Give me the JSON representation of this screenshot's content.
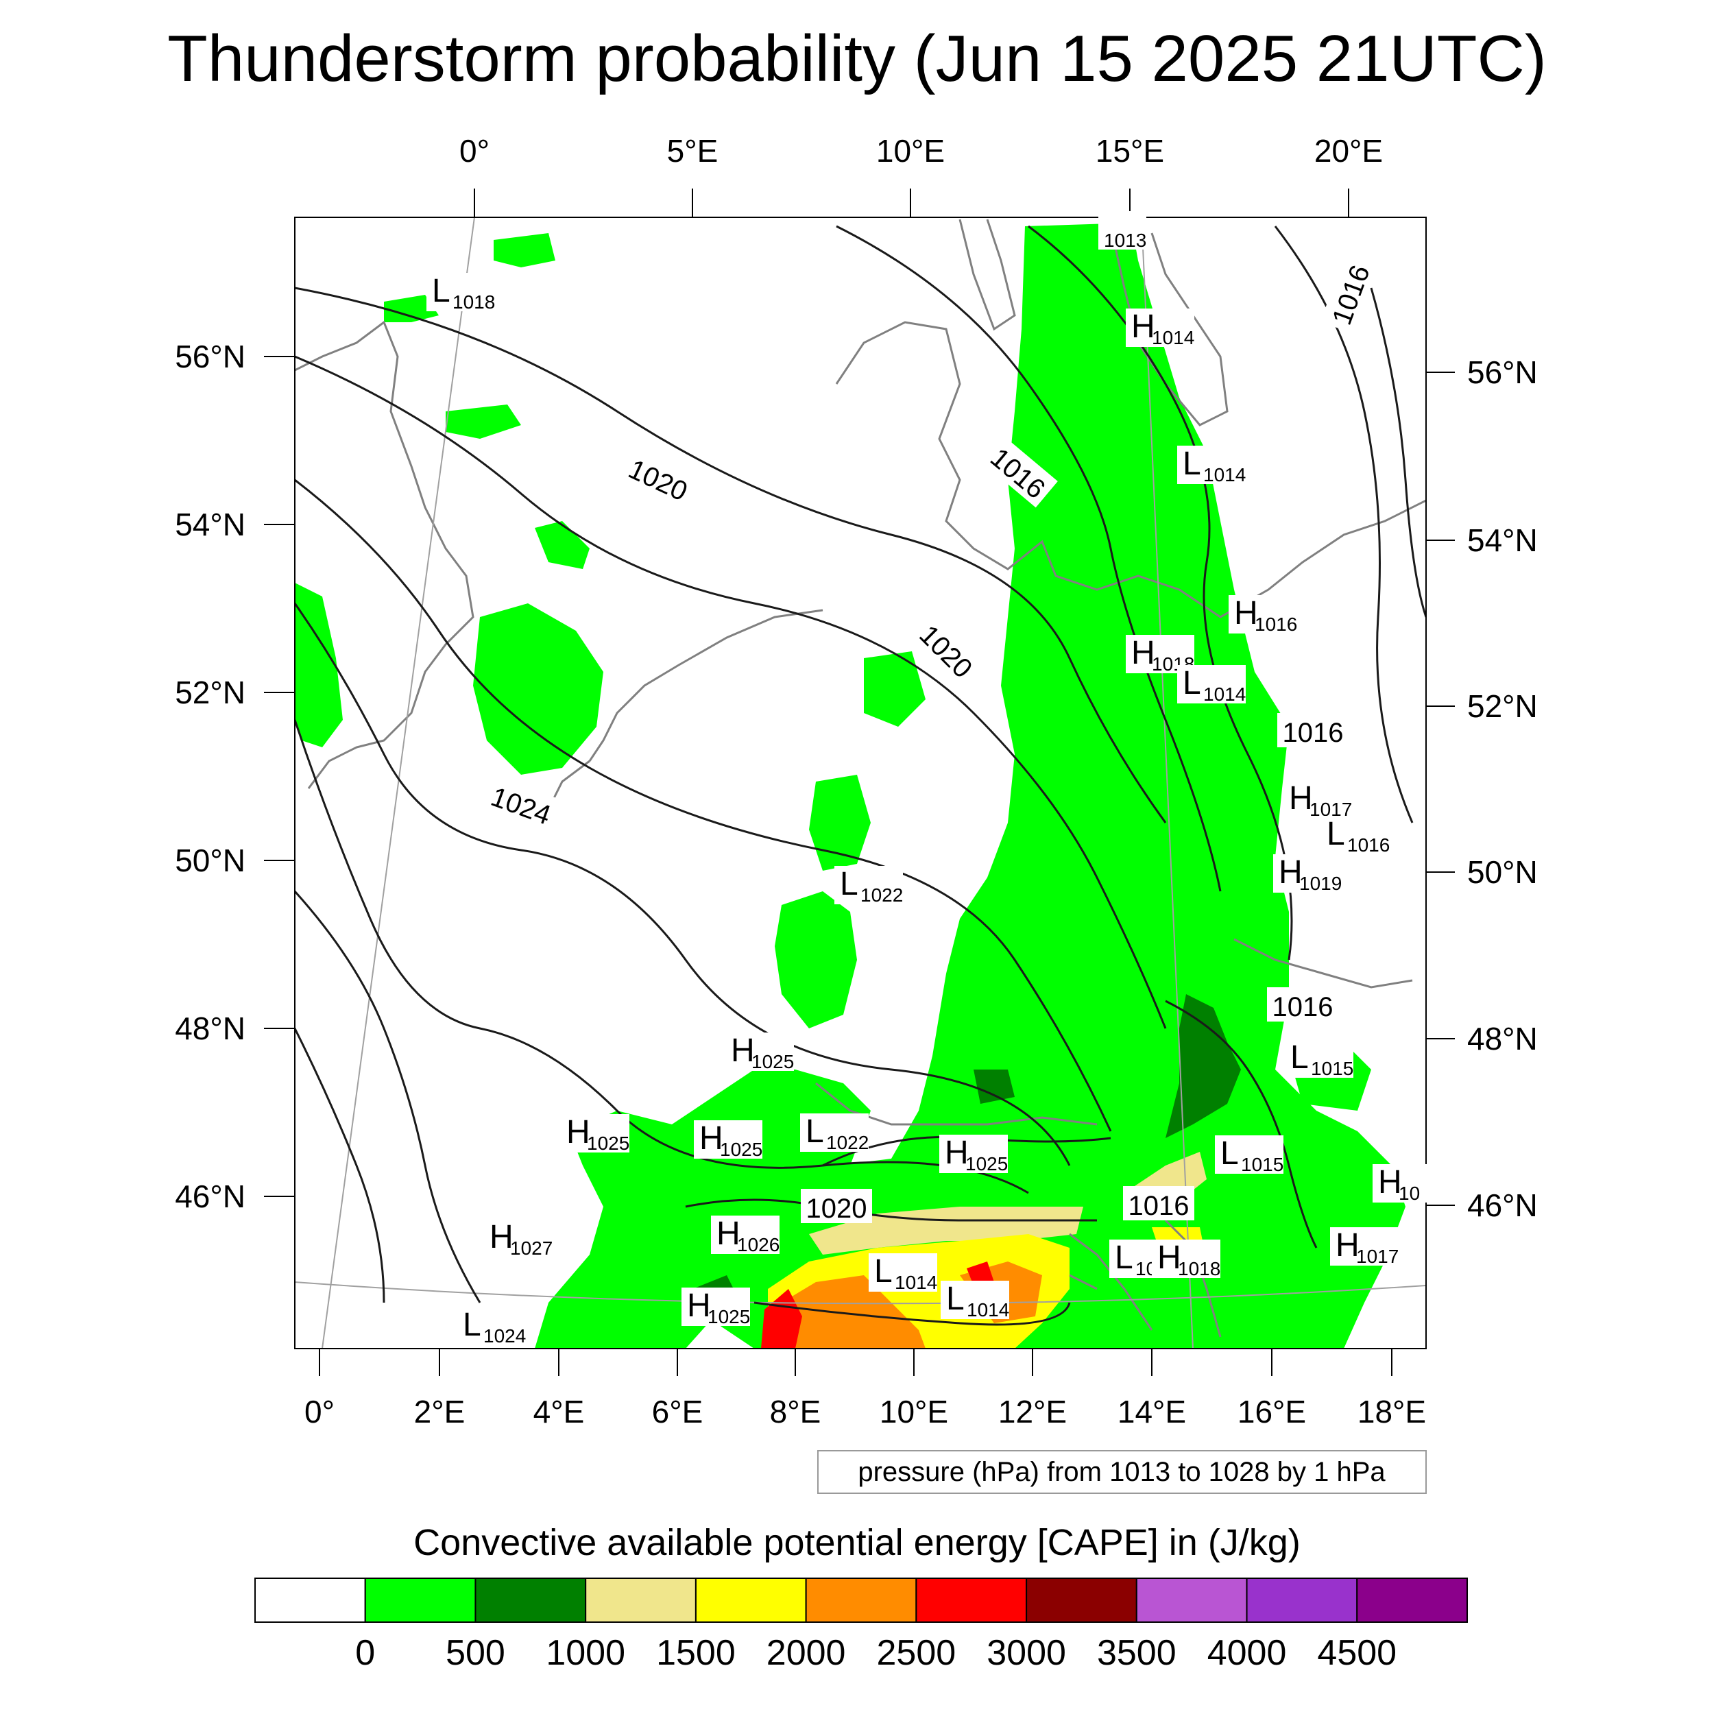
{
  "title": "Thunderstorm probability (Jun 15 2025 21UTC)",
  "axes": {
    "top_lon_labels": [
      "0°",
      "5°E",
      "10°E",
      "15°E",
      "20°E"
    ],
    "bottom_lon_labels": [
      "0°",
      "2°E",
      "4°E",
      "6°E",
      "8°E",
      "10°E",
      "12°E",
      "14°E",
      "16°E",
      "18°E"
    ],
    "left_lat_labels": [
      "56°N",
      "54°N",
      "52°N",
      "50°N",
      "48°N",
      "46°N"
    ],
    "right_lat_labels": [
      "56°N",
      "54°N",
      "52°N",
      "50°N",
      "48°N",
      "46°N"
    ]
  },
  "contour_info": "pressure (hPa) from 1013 to 1028 by 1 hPa",
  "colorbar": {
    "title": "Convective available potential energy [CAPE] in (J/kg)",
    "colors": [
      "#ffffff",
      "#00ff00",
      "#008000",
      "#f0e68c",
      "#ffff00",
      "#ff8c00",
      "#ff0000",
      "#8b0000",
      "#b955d3",
      "#9932cc",
      "#8b008b"
    ],
    "labels": [
      "0",
      "500",
      "1000",
      "1500",
      "2000",
      "2500",
      "3000",
      "3500",
      "4000",
      "4500"
    ]
  },
  "isobar_labels": [
    {
      "text": "1020"
    },
    {
      "text": "1016"
    },
    {
      "text": "1020"
    },
    {
      "text": "1016"
    },
    {
      "text": "1024"
    },
    {
      "text": "1016"
    },
    {
      "text": "1016"
    },
    {
      "text": "1020"
    },
    {
      "text": "1016"
    }
  ],
  "pressure_centers": [
    {
      "type": "L",
      "value": "1018"
    },
    {
      "type": "",
      "value": "1013"
    },
    {
      "type": "H",
      "value": "1014"
    },
    {
      "type": "L",
      "value": "1014"
    },
    {
      "type": "H",
      "value": "1016"
    },
    {
      "type": "H",
      "value": "1018"
    },
    {
      "type": "L",
      "value": "1014"
    },
    {
      "type": "H",
      "value": "1017"
    },
    {
      "type": "L",
      "value": "1016"
    },
    {
      "type": "H",
      "value": "1019"
    },
    {
      "type": "L",
      "value": "1022"
    },
    {
      "type": "H",
      "value": "1025"
    },
    {
      "type": "L",
      "value": "1015"
    },
    {
      "type": "H",
      "value": "1025"
    },
    {
      "type": "H",
      "value": "1025"
    },
    {
      "type": "L",
      "value": "1022"
    },
    {
      "type": "H",
      "value": "1025"
    },
    {
      "type": "L",
      "value": "1015"
    },
    {
      "type": "H",
      "value": "1027"
    },
    {
      "type": "H",
      "value": "1026"
    },
    {
      "type": "L",
      "value": "1014"
    },
    {
      "type": "L",
      "value": "1014"
    },
    {
      "type": "L",
      "value": "10"
    },
    {
      "type": "H",
      "value": "1018"
    },
    {
      "type": "H",
      "value": "1017"
    },
    {
      "type": "H",
      "value": "1025"
    },
    {
      "type": "L",
      "value": "1024"
    },
    {
      "type": "H",
      "value": "10"
    }
  ]
}
